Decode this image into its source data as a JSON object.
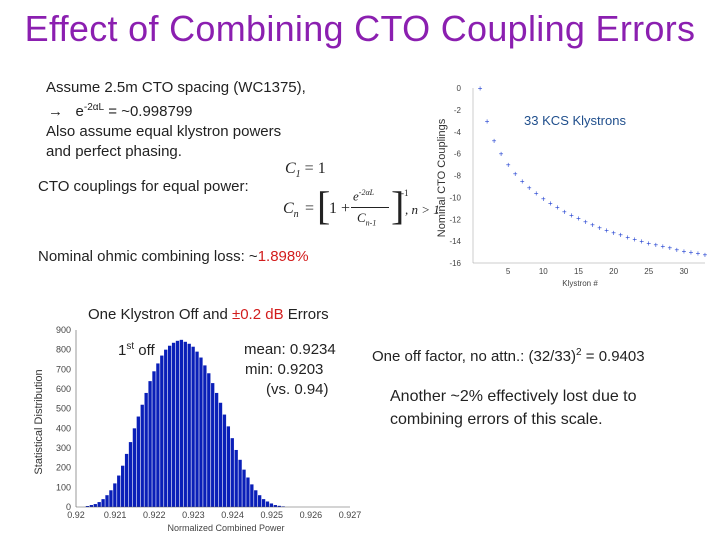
{
  "title": "Effect of Combining CTO Coupling Errors",
  "intro": {
    "line1": "Assume 2.5m CTO spacing (WC1375),",
    "line2_arrow": "→",
    "line2_expr": "e",
    "line2_sup": "-2αL",
    "line2_rest": " = ~0.998799",
    "line3": "Also assume equal klystron powers",
    "line4": "and perfect phasing."
  },
  "couplings_label": "CTO couplings for equal power:",
  "equations": {
    "eq1_lhs": "C",
    "eq1_sub": "1",
    "eq1_rhs": "= 1",
    "eq2_lhs": "C",
    "eq2_sub": "n",
    "eq2_eq": "=",
    "eq2_one": "1 +",
    "eq2_num": "e",
    "eq2_num_sup": "-2αL",
    "eq2_den": "C",
    "eq2_den_sub": "n-1",
    "eq2_pow": "-1",
    "eq2_cond": ", n > 1"
  },
  "loss": {
    "label": "Nominal ohmic combining loss:  ~",
    "value": "1.898%"
  },
  "klystron_off": {
    "prefix": "One Klystron Off and ",
    "value": "±0.2 dB",
    "suffix": " Errors"
  },
  "annotations": {
    "first_off": "1",
    "first_off_sup": "st",
    "first_off_rest": " off",
    "mean": "mean:  0.9234",
    "min": "min:   0.9203",
    "vs": "(vs. 0.94)"
  },
  "right_text": {
    "factor_prefix": "One off factor, no attn.: (32/33)",
    "factor_sup": "2",
    "factor_rest": " = 0.9403",
    "lost_line1": "Another ~2% effectively lost due to",
    "lost_line2": "combining  errors of this scale."
  },
  "colors": {
    "title": "#8b1fb0",
    "accent_red": "#d21c1c",
    "series_blue": "#1f3fd0",
    "legend_blue": "#1f4e8c"
  },
  "chart_data": [
    {
      "type": "scatter",
      "legend": "33 KCS Klystrons",
      "legend_value": "33",
      "legend_text": "KCS Klystrons",
      "xlabel": "Klystron #",
      "ylabel": "Nominal CTO Couplings",
      "xlim": [
        0,
        33
      ],
      "ylim": [
        -16,
        0
      ],
      "xticks": [
        5,
        10,
        15,
        20,
        25,
        30
      ],
      "yticks": [
        0,
        -2,
        -4,
        -6,
        -8,
        -10,
        -12,
        -14,
        -16
      ],
      "x": [
        1,
        2,
        3,
        4,
        5,
        6,
        7,
        8,
        9,
        10,
        11,
        12,
        13,
        14,
        15,
        16,
        17,
        18,
        19,
        20,
        21,
        22,
        23,
        24,
        25,
        26,
        27,
        28,
        29,
        30,
        31,
        32,
        33
      ],
      "y": [
        -0.02,
        -3.0,
        -4.8,
        -6.0,
        -7.0,
        -7.8,
        -8.5,
        -9.1,
        -9.6,
        -10.1,
        -10.5,
        -10.9,
        -11.3,
        -11.6,
        -11.9,
        -12.2,
        -12.5,
        -12.75,
        -13.0,
        -13.2,
        -13.4,
        -13.6,
        -13.8,
        -14.0,
        -14.15,
        -14.3,
        -14.45,
        -14.6,
        -14.75,
        -14.88,
        -15.0,
        -15.1,
        -15.2
      ]
    },
    {
      "type": "bar",
      "xlabel": "Normalized Combined Power",
      "ylabel": "Statistical Distribution",
      "xlim": [
        0.92,
        0.927
      ],
      "ylim": [
        0,
        900
      ],
      "xticks": [
        "0.92",
        "0.921",
        "0.922",
        "0.923",
        "0.924",
        "0.925",
        "0.926",
        "0.927"
      ],
      "xtick_values": [
        0.92,
        0.921,
        0.922,
        0.923,
        0.924,
        0.925,
        0.926,
        0.927
      ],
      "yticks": [
        0,
        100,
        200,
        300,
        400,
        500,
        600,
        700,
        800,
        900
      ],
      "bins_start": 0.92025,
      "bin_width": 0.0001,
      "values": [
        5,
        10,
        15,
        25,
        40,
        60,
        85,
        120,
        160,
        210,
        270,
        330,
        400,
        460,
        520,
        580,
        640,
        690,
        730,
        770,
        800,
        820,
        835,
        845,
        850,
        840,
        830,
        815,
        790,
        760,
        720,
        680,
        630,
        580,
        530,
        470,
        410,
        350,
        290,
        240,
        190,
        150,
        115,
        85,
        60,
        40,
        28,
        18,
        10,
        6,
        3
      ]
    }
  ]
}
